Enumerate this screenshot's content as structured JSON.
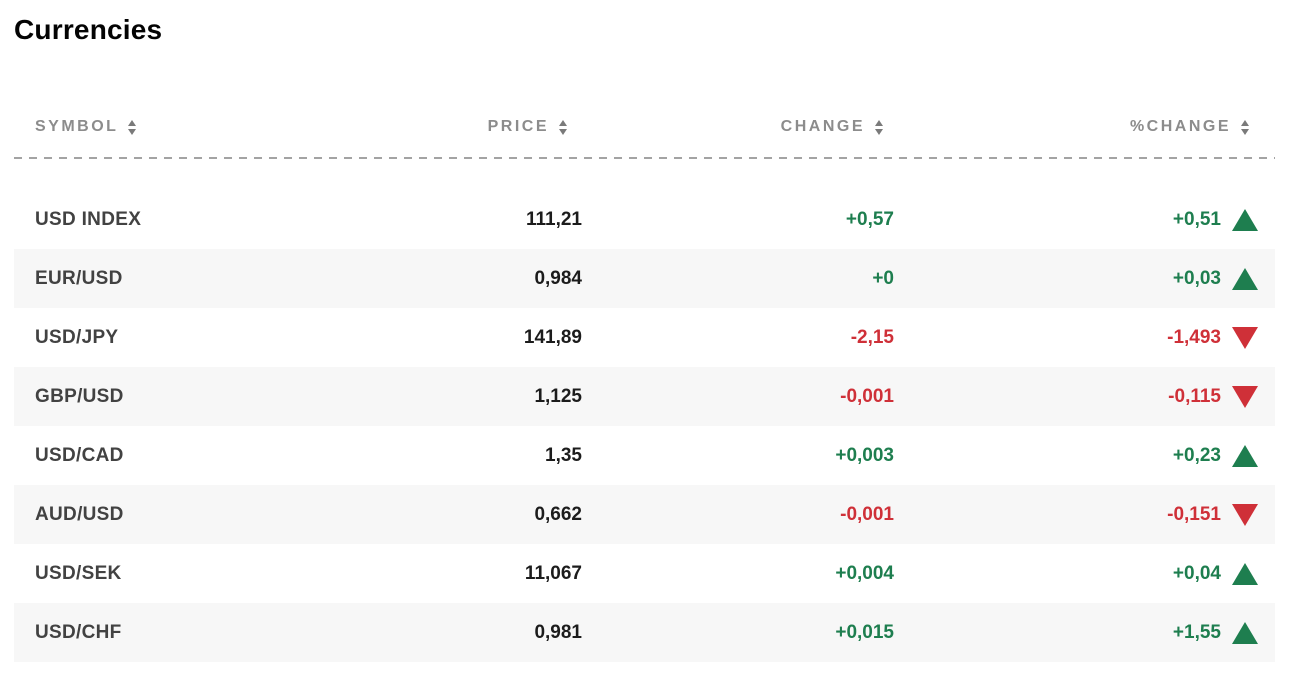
{
  "page": {
    "title": "Currencies"
  },
  "colors": {
    "positive": "#1e7e4f",
    "negative": "#cf3038",
    "row_alt_bg": "#f7f7f7",
    "header_text": "#8c8c8c",
    "symbol_text": "#424242",
    "price_text": "#1c1c1c"
  },
  "table": {
    "columns": [
      {
        "key": "symbol",
        "label": "SYMBOL",
        "sortable": true
      },
      {
        "key": "price",
        "label": "PRICE",
        "sortable": true
      },
      {
        "key": "change",
        "label": "CHANGE",
        "sortable": true
      },
      {
        "key": "pct_change",
        "label": "%CHANGE",
        "sortable": true
      }
    ],
    "rows": [
      {
        "symbol": "USD INDEX",
        "price": "111,21",
        "change": "+0,57",
        "pct_change": "+0,51",
        "direction": "up"
      },
      {
        "symbol": "EUR/USD",
        "price": "0,984",
        "change": "+0",
        "pct_change": "+0,03",
        "direction": "up"
      },
      {
        "symbol": "USD/JPY",
        "price": "141,89",
        "change": "-2,15",
        "pct_change": "-1,493",
        "direction": "down"
      },
      {
        "symbol": "GBP/USD",
        "price": "1,125",
        "change": "-0,001",
        "pct_change": "-0,115",
        "direction": "down"
      },
      {
        "symbol": "USD/CAD",
        "price": "1,35",
        "change": "+0,003",
        "pct_change": "+0,23",
        "direction": "up"
      },
      {
        "symbol": "AUD/USD",
        "price": "0,662",
        "change": "-0,001",
        "pct_change": "-0,151",
        "direction": "down"
      },
      {
        "symbol": "USD/SEK",
        "price": "11,067",
        "change": "+0,004",
        "pct_change": "+0,04",
        "direction": "up"
      },
      {
        "symbol": "USD/CHF",
        "price": "0,981",
        "change": "+0,015",
        "pct_change": "+1,55",
        "direction": "up"
      }
    ]
  }
}
